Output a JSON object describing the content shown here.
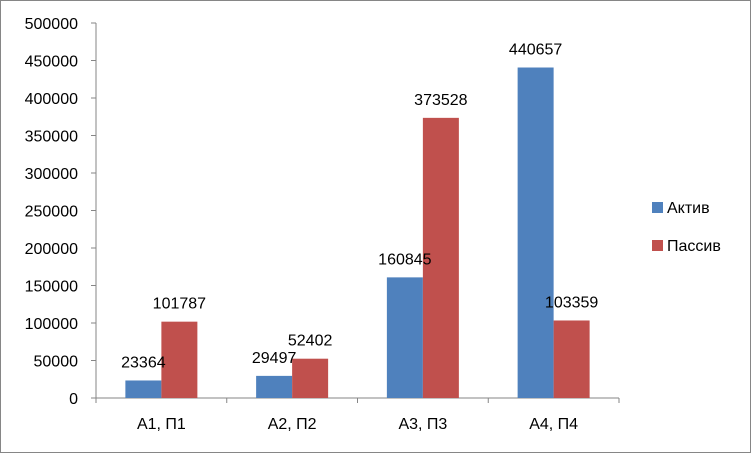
{
  "chart_data": {
    "type": "bar",
    "categories": [
      "А1, П1",
      "А2, П2",
      "А3, П3",
      "А4, П4"
    ],
    "series": [
      {
        "name": "Актив",
        "color": "#4f81bd",
        "values": [
          23364,
          29497,
          160845,
          440657
        ]
      },
      {
        "name": "Пассив",
        "color": "#c0504d",
        "values": [
          101787,
          52402,
          373528,
          103359
        ]
      }
    ],
    "data_labels": {
      "Актив": [
        "23364",
        "29497",
        "160845",
        "440657"
      ],
      "Пассив": [
        "101787",
        "52402",
        "373528",
        "103359"
      ]
    },
    "y_ticks": [
      "0",
      "50000",
      "100000",
      "150000",
      "200000",
      "250000",
      "300000",
      "350000",
      "400000",
      "450000",
      "500000"
    ],
    "ylim": [
      0,
      500000
    ],
    "grid": false,
    "legend_position": "right"
  }
}
